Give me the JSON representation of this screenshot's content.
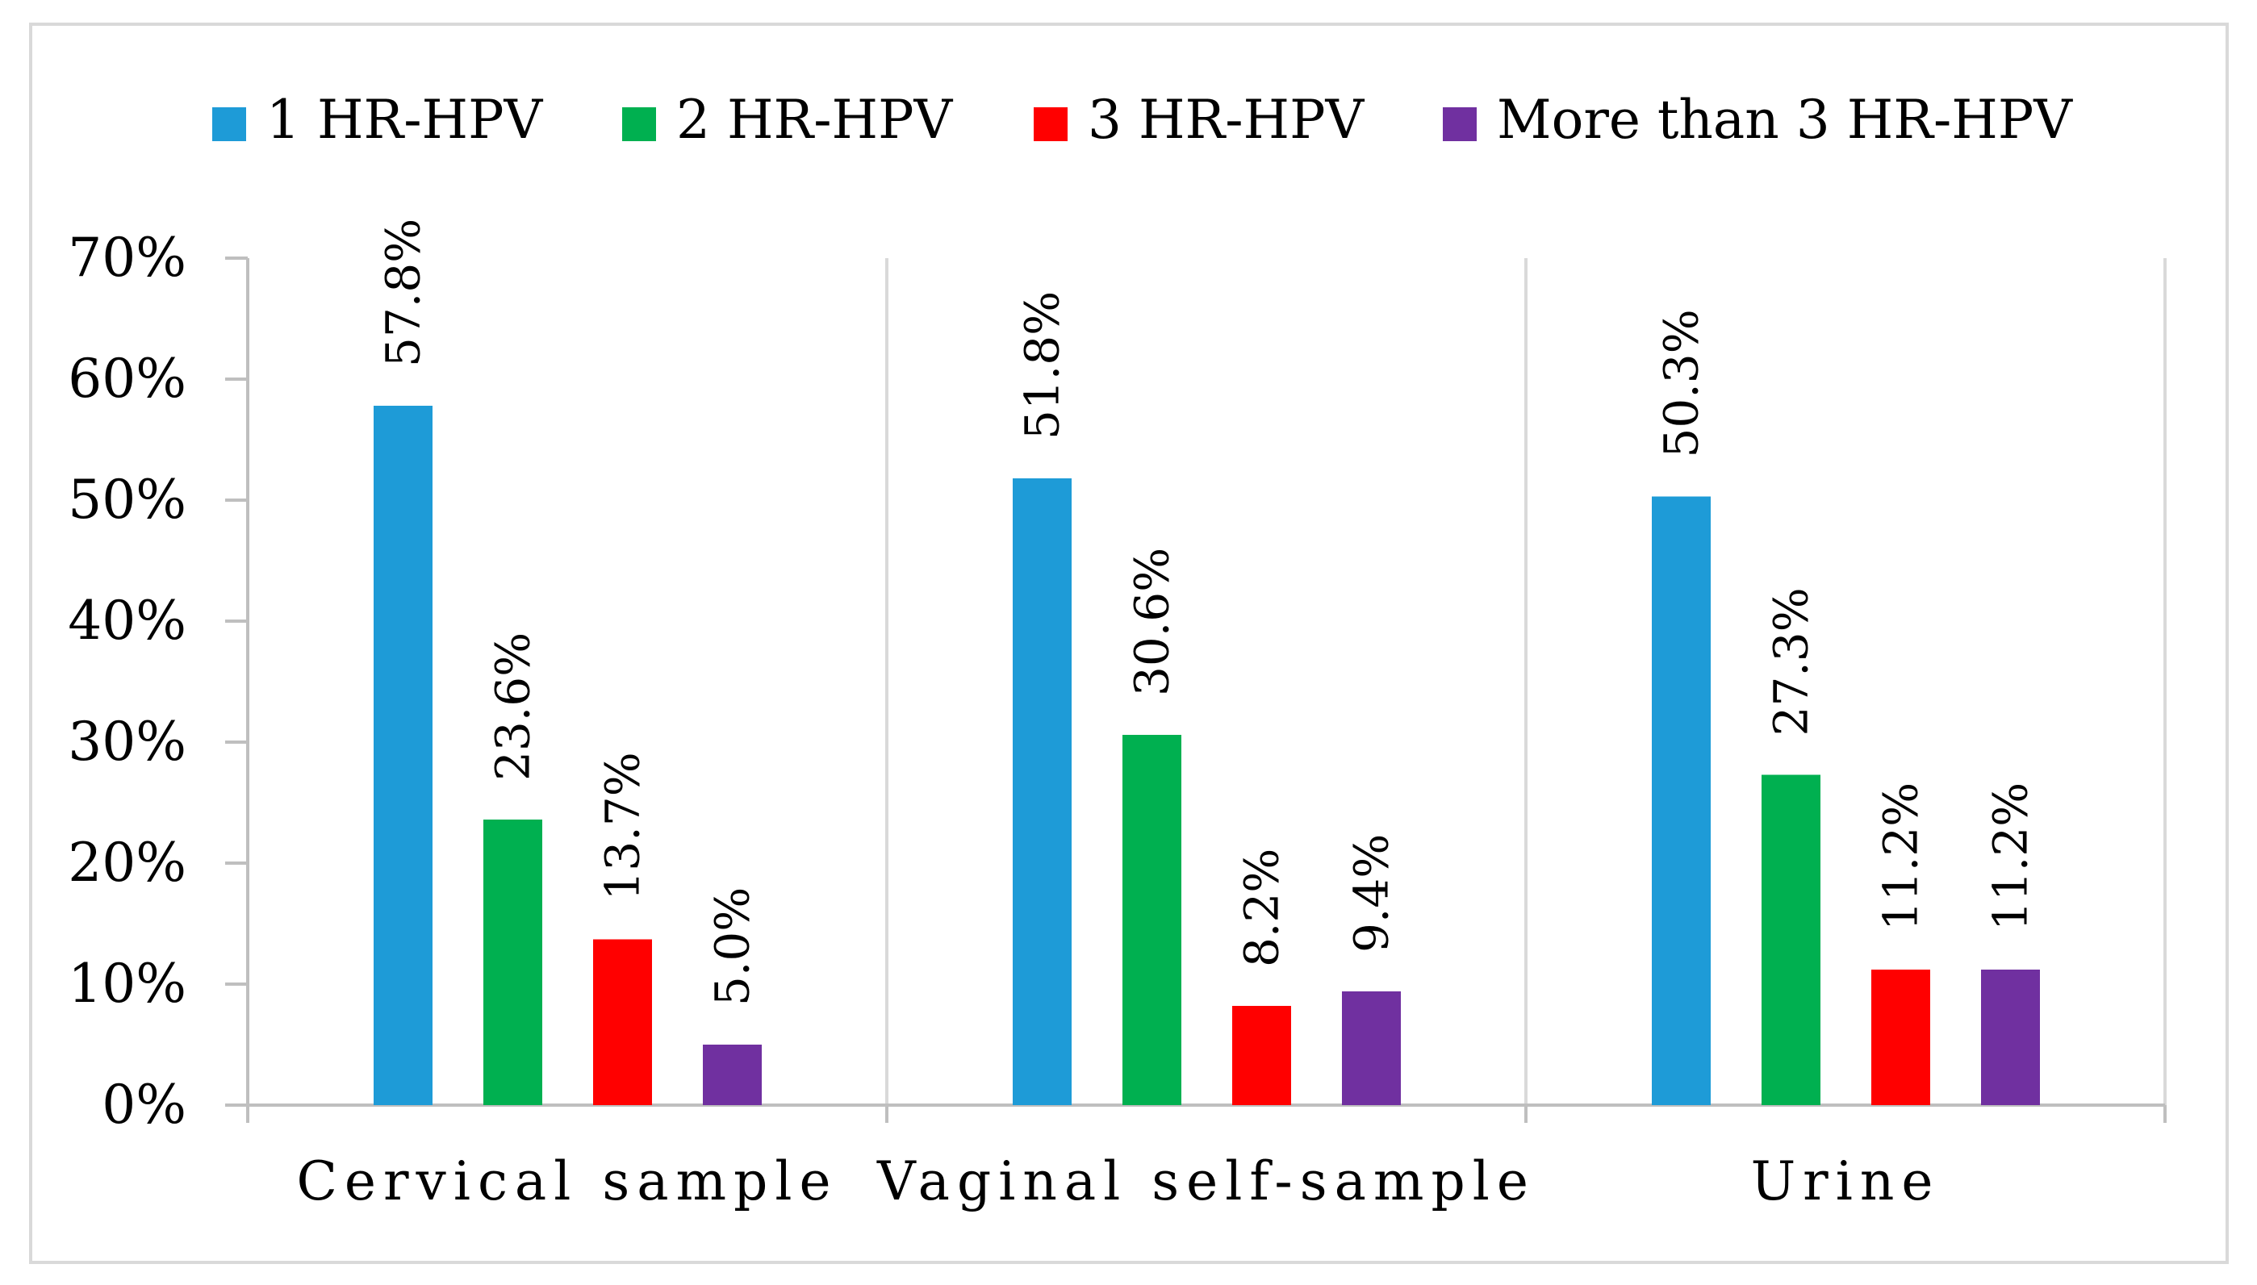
{
  "chart_data": {
    "type": "bar",
    "title": "",
    "xlabel": "",
    "ylabel": "",
    "categories": [
      "Cervical sample",
      "Vaginal self-sample",
      "Urine"
    ],
    "series": [
      {
        "name": "1 HR-HPV",
        "color": "#1e9bd7",
        "values": [
          57.8,
          51.8,
          50.3
        ],
        "labels": [
          "57.8%",
          "51.8%",
          "50.3%"
        ]
      },
      {
        "name": "2 HR-HPV",
        "color": "#00b050",
        "values": [
          23.6,
          30.6,
          27.3
        ],
        "labels": [
          "23.6%",
          "30.6%",
          "27.3%"
        ]
      },
      {
        "name": "3 HR-HPV",
        "color": "#ff0000",
        "values": [
          13.7,
          8.2,
          11.2
        ],
        "labels": [
          "13.7%",
          "8.2%",
          "11.2%"
        ]
      },
      {
        "name": "More than 3 HR-HPV",
        "color": "#7030a0",
        "values": [
          5.0,
          9.4,
          11.2
        ],
        "labels": [
          "5.0%",
          "9.4%",
          "11.2%"
        ]
      }
    ],
    "ylim": [
      0,
      70
    ],
    "yticks": [
      "0%",
      "10%",
      "20%",
      "30%",
      "40%",
      "50%",
      "60%",
      "70%"
    ],
    "legend_position": "top",
    "grid": "vertical category separators"
  }
}
